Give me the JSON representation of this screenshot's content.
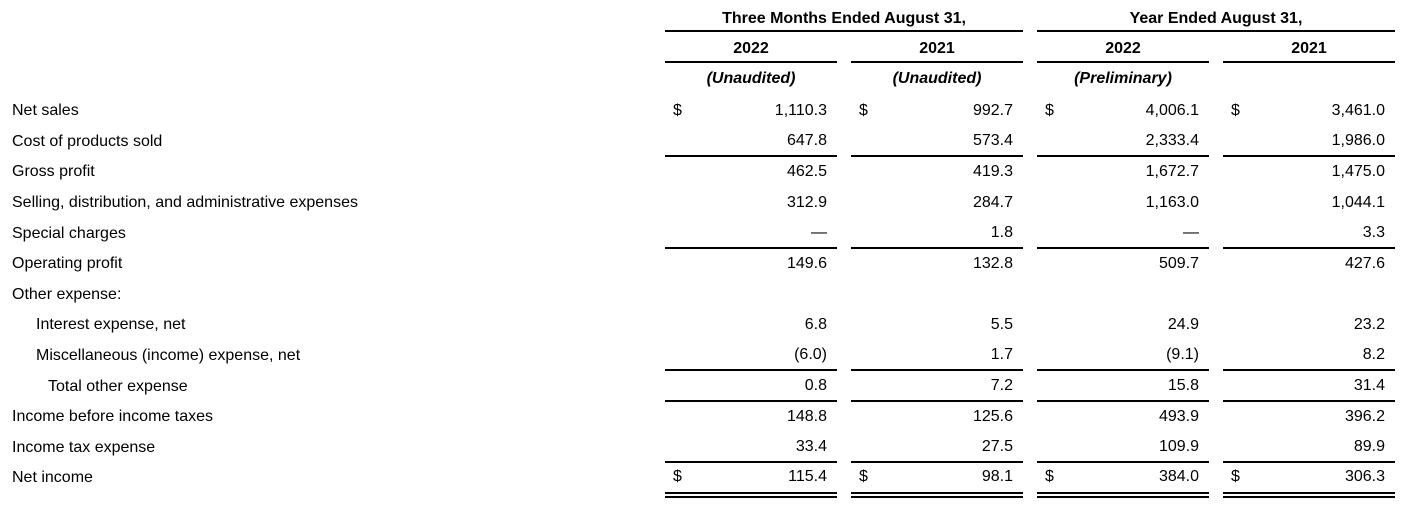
{
  "table": {
    "currency_symbol": "$",
    "column_groups": [
      {
        "title": "Three Months Ended August 31,",
        "columns": [
          "2022",
          "2021"
        ],
        "notes": [
          "(Unaudited)",
          "(Unaudited)"
        ]
      },
      {
        "title": "Year Ended August 31,",
        "columns": [
          "2022",
          "2021"
        ],
        "notes": [
          "(Preliminary)",
          ""
        ]
      }
    ],
    "rows": [
      {
        "label": "Net sales",
        "values": [
          "1,110.3",
          "992.7",
          "4,006.1",
          "3,461.0"
        ]
      },
      {
        "label": "Cost of products sold",
        "values": [
          "647.8",
          "573.4",
          "2,333.4",
          "1,986.0"
        ]
      },
      {
        "label": "Gross profit",
        "values": [
          "462.5",
          "419.3",
          "1,672.7",
          "1,475.0"
        ]
      },
      {
        "label": "Selling, distribution, and administrative expenses",
        "values": [
          "312.9",
          "284.7",
          "1,163.0",
          "1,044.1"
        ]
      },
      {
        "label": "Special charges",
        "values": [
          "—",
          "1.8",
          "—",
          "3.3"
        ]
      },
      {
        "label": "Operating profit",
        "values": [
          "149.6",
          "132.8",
          "509.7",
          "427.6"
        ]
      },
      {
        "label": "Other expense:",
        "values": [
          "",
          "",
          "",
          ""
        ]
      },
      {
        "label": "Interest expense, net",
        "values": [
          "6.8",
          "5.5",
          "24.9",
          "23.2"
        ]
      },
      {
        "label": "Miscellaneous (income) expense, net",
        "values": [
          "(6.0)",
          "1.7",
          "(9.1)",
          "8.2"
        ]
      },
      {
        "label": "Total other expense",
        "values": [
          "0.8",
          "7.2",
          "15.8",
          "31.4"
        ]
      },
      {
        "label": "Income before income taxes",
        "values": [
          "148.8",
          "125.6",
          "493.9",
          "396.2"
        ]
      },
      {
        "label": "Income tax expense",
        "values": [
          "33.4",
          "27.5",
          "109.9",
          "89.9"
        ]
      },
      {
        "label": "Net income",
        "values": [
          "115.4",
          "98.1",
          "384.0",
          "306.3"
        ]
      }
    ]
  }
}
